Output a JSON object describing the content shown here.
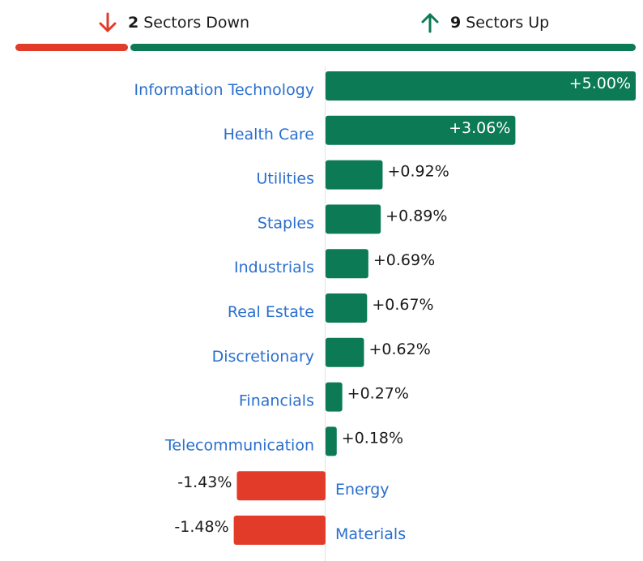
{
  "summary": {
    "down": {
      "count": "2",
      "label": "Sectors Down",
      "color": "#e23b2a",
      "icon": "arrow-down-icon"
    },
    "up": {
      "count": "9",
      "label": "Sectors Up",
      "color": "#0b7a55",
      "icon": "arrow-up-icon"
    }
  },
  "colors": {
    "positive": "#0b7a55",
    "negative": "#e23b2a",
    "category_label": "#2a6fcf",
    "axis": "#e3e3e3"
  },
  "chart_data": {
    "type": "bar",
    "orientation": "horizontal",
    "categories": [
      "Information Technology",
      "Health Care",
      "Utilities",
      "Staples",
      "Industrials",
      "Real Estate",
      "Discretionary",
      "Financials",
      "Telecommunication",
      "Energy",
      "Materials"
    ],
    "values": [
      5.0,
      3.06,
      0.92,
      0.89,
      0.69,
      0.67,
      0.62,
      0.27,
      0.18,
      -1.43,
      -1.48
    ],
    "value_labels": [
      "+5.00%",
      "+3.06%",
      "+0.92%",
      "+0.89%",
      "+0.69%",
      "+0.67%",
      "+0.62%",
      "+0.27%",
      "+0.18%",
      "-1.43%",
      "-1.48%"
    ],
    "title": "",
    "xlabel": "",
    "ylabel": "",
    "xlim": [
      -1.48,
      5.0
    ],
    "grid": false,
    "legend": "none"
  }
}
